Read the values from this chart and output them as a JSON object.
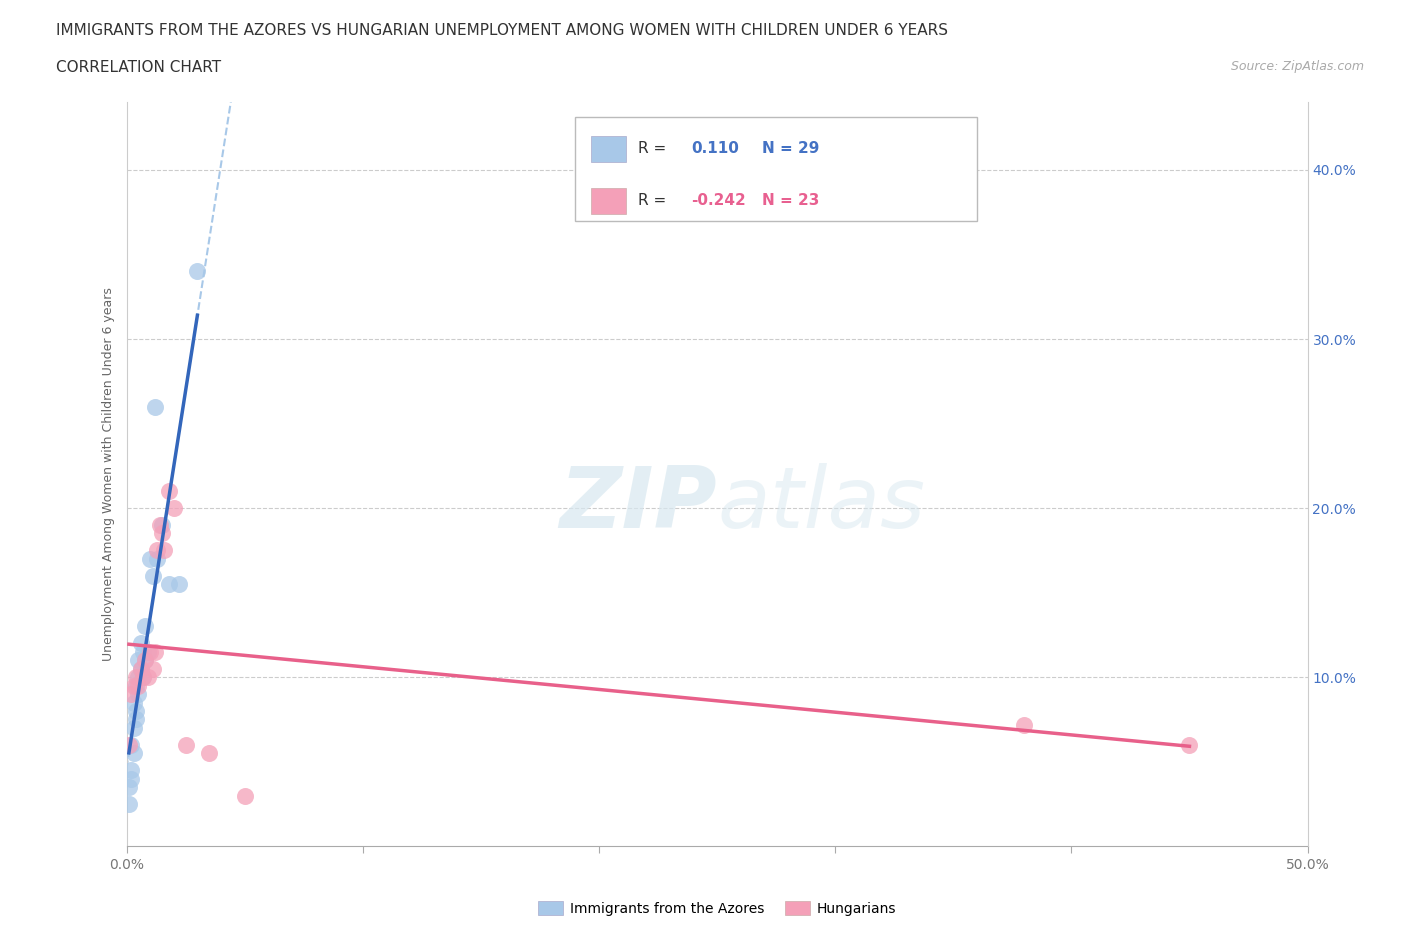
{
  "title_line1": "IMMIGRANTS FROM THE AZORES VS HUNGARIAN UNEMPLOYMENT AMONG WOMEN WITH CHILDREN UNDER 6 YEARS",
  "title_line2": "CORRELATION CHART",
  "source": "Source: ZipAtlas.com",
  "ylabel": "Unemployment Among Women with Children Under 6 years",
  "xlim": [
    0.0,
    0.5
  ],
  "ylim": [
    0.0,
    0.44
  ],
  "xtick_pos": [
    0.0,
    0.1,
    0.2,
    0.3,
    0.4,
    0.5
  ],
  "xtick_labels": [
    "0.0%",
    "",
    "",
    "",
    "",
    "50.0%"
  ],
  "ytick_vals_right": [
    0.1,
    0.2,
    0.3,
    0.4
  ],
  "ytick_labels_right": [
    "10.0%",
    "20.0%",
    "30.0%",
    "40.0%"
  ],
  "grid_vals": [
    0.1,
    0.2,
    0.3,
    0.4
  ],
  "blue_R": 0.11,
  "blue_N": 29,
  "pink_R": -0.242,
  "pink_N": 23,
  "blue_color": "#a8c8e8",
  "blue_line_color": "#3366bb",
  "blue_dashed_color": "#a8c8e8",
  "pink_color": "#f4a0b8",
  "pink_line_color": "#e8608a",
  "background_color": "#ffffff",
  "watermark_zip": "ZIP",
  "watermark_atlas": "atlas",
  "legend_label_blue": "Immigrants from the Azores",
  "legend_label_pink": "Hungarians",
  "blue_x": [
    0.001,
    0.001,
    0.002,
    0.002,
    0.002,
    0.003,
    0.003,
    0.003,
    0.004,
    0.004,
    0.004,
    0.005,
    0.005,
    0.005,
    0.006,
    0.006,
    0.007,
    0.007,
    0.008,
    0.008,
    0.009,
    0.01,
    0.011,
    0.012,
    0.013,
    0.015,
    0.018,
    0.022,
    0.03
  ],
  "blue_y": [
    0.025,
    0.035,
    0.045,
    0.06,
    0.04,
    0.055,
    0.07,
    0.085,
    0.08,
    0.095,
    0.075,
    0.09,
    0.1,
    0.11,
    0.105,
    0.12,
    0.1,
    0.115,
    0.11,
    0.13,
    0.115,
    0.17,
    0.16,
    0.26,
    0.17,
    0.19,
    0.155,
    0.155,
    0.34
  ],
  "pink_x": [
    0.001,
    0.002,
    0.003,
    0.004,
    0.005,
    0.006,
    0.007,
    0.008,
    0.009,
    0.01,
    0.011,
    0.012,
    0.013,
    0.014,
    0.015,
    0.016,
    0.018,
    0.02,
    0.025,
    0.035,
    0.05,
    0.38,
    0.45
  ],
  "pink_y": [
    0.06,
    0.09,
    0.095,
    0.1,
    0.095,
    0.105,
    0.1,
    0.11,
    0.1,
    0.115,
    0.105,
    0.115,
    0.175,
    0.19,
    0.185,
    0.175,
    0.21,
    0.2,
    0.06,
    0.055,
    0.03,
    0.072,
    0.06
  ]
}
